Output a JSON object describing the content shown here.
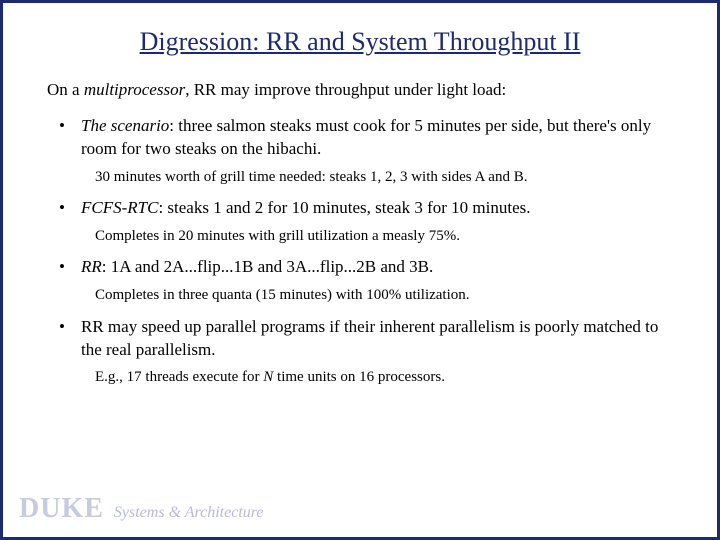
{
  "title": "Digression: RR and System Throughput II",
  "lead_pre": "On a ",
  "lead_em": "multiprocessor",
  "lead_post": ", RR may improve throughput under light load:",
  "b1_em": "The scenario",
  "b1_rest": ": three salmon steaks must cook for 5 minutes per side, but there's only room for two steaks on the hibachi.",
  "b1_sub": "30 minutes worth of grill time needed: steaks 1, 2, 3 with sides A and B.",
  "b2_em": "FCFS-RTC",
  "b2_rest": ": steaks 1 and 2 for 10 minutes, steak 3 for 10 minutes.",
  "b2_sub": "Completes in 20 minutes with grill utilization a measly 75%.",
  "b3_em": "RR",
  "b3_rest": ": 1A and 2A...flip...1B and 3A...flip...2B and 3B.",
  "b3_sub": "Completes in three quanta (15 minutes) with 100% utilization.",
  "b4": "RR may speed up parallel programs if their inherent parallelism is poorly matched to the real parallelism.",
  "b4_sub_pre": "E.g., 17 threads execute for ",
  "b4_sub_em": "N",
  "b4_sub_post": " time units on 16 processors.",
  "footer_duke": "DUKE",
  "footer_sys": "Systems & Architecture",
  "colors": {
    "border_title": "#1e2a6e",
    "footer_gray": "#c7cbe0",
    "footer_gray2": "#b7bcd6",
    "text": "#000000",
    "bg": "#ffffff"
  },
  "fontsizes": {
    "title": 26,
    "lead": 17,
    "bullet": 17,
    "sub": 15,
    "duke": 28,
    "sysarch": 16
  }
}
